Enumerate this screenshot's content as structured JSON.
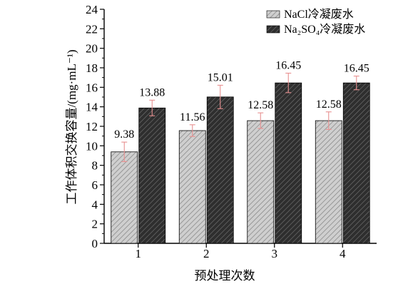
{
  "chart_data": {
    "type": "bar",
    "xlabel": "预处理次数",
    "ylabel": "工作体积交换容量/(mg·mL⁻¹)",
    "categories": [
      "1",
      "2",
      "3",
      "4"
    ],
    "ylim": [
      0,
      24
    ],
    "yticks": [
      0,
      2,
      4,
      6,
      8,
      10,
      12,
      14,
      16,
      18,
      20,
      22,
      24
    ],
    "grid": false,
    "legend_position": "top-right",
    "series": [
      {
        "name": "NaCl冷凝废水",
        "values": [
          9.38,
          11.56,
          12.58,
          12.58
        ],
        "labels": [
          "9.38",
          "11.56",
          "12.58",
          "12.58"
        ],
        "errors": [
          1.0,
          0.6,
          0.8,
          0.9
        ],
        "color": "#c8c8c8",
        "hatch_color": "#8a8a8a",
        "error_color": "#e89090"
      },
      {
        "name": "Na₂SO₄冷凝废水",
        "values": [
          13.88,
          15.01,
          16.45,
          16.45
        ],
        "labels": [
          "13.88",
          "15.01",
          "16.45",
          "16.45"
        ],
        "errors": [
          0.8,
          1.2,
          1.0,
          0.7
        ],
        "color": "#333333",
        "hatch_color": "#6a6a6a",
        "error_color": "#e89090"
      }
    ]
  }
}
